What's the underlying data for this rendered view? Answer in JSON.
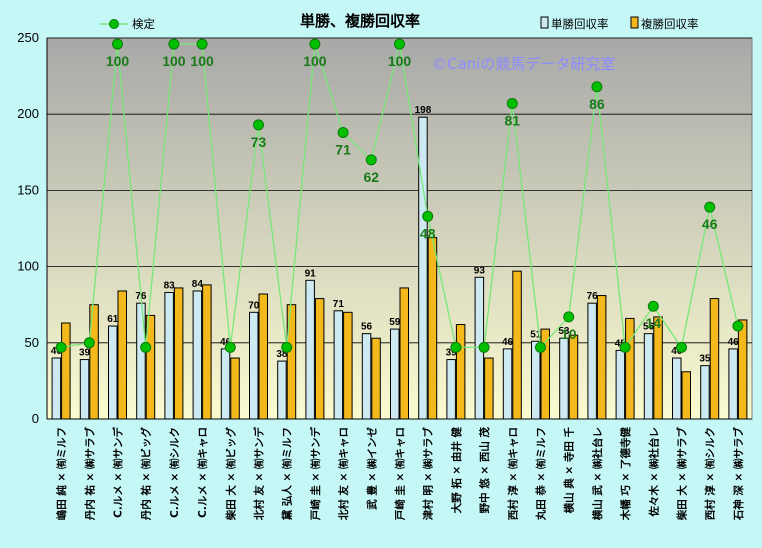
{
  "chart_data": {
    "type": "bar",
    "title": "単勝、複勝回収率",
    "watermark": "©Caniの競馬データ研究室",
    "ylim": [
      0,
      250
    ],
    "yticks": [
      0,
      50,
      100,
      150,
      200,
      250
    ],
    "grid": true,
    "legend_position": "top",
    "categories": [
      "嶋田 純 × ㈲ミルフ",
      "丹内 祐 × ㈱サラブ",
      "C.ルメ × ㈲サンデ",
      "丹内 祐 × ㈲ビッグ",
      "C.ルメ × ㈲シルク",
      "C.ルメ × ㈲キャロ",
      "柴田 大 × ㈲ビッグ",
      "北村 友 × ㈲サンデ",
      "黛 弘人 × ㈲ミルフ",
      "戸崎 圭 × ㈲サンデ",
      "北村 友 × ㈲キャロ",
      "武 豊 × ㈱インゼ",
      "戸崎 圭 × ㈲キャロ",
      "津村 明 × ㈱サラブ",
      "大野 拓 × 由井 健",
      "野中 悠 × 西山 茂",
      "西村 淳 × ㈲キャロ",
      "丸田 恭 × ㈲ミルフ",
      "横山 典 × 寺田 千",
      "横山 武 × ㈱社台レ",
      "木幡 巧 × 了德寺健",
      "佐々木 × ㈱社台レ",
      "柴田 大 × ㈱サラブ",
      "西村 淳 × ㈲シルク",
      "石神 深 × ㈱サラブ"
    ],
    "series": [
      {
        "name": "単勝回収率",
        "color": "#cdeaf3",
        "values": [
          40,
          39,
          61,
          76,
          83,
          84,
          46,
          70,
          38,
          91,
          71,
          56,
          59,
          198,
          39,
          93,
          46,
          51,
          53,
          76,
          45,
          56,
          40,
          35,
          46
        ],
        "labels": [
          "40",
          "39",
          "61",
          "76",
          "83",
          "84",
          "46",
          "70",
          "38",
          "91",
          "71",
          "56",
          "59",
          "198",
          "39",
          "93",
          "46",
          "51",
          "53",
          "76",
          "45",
          "56",
          "40",
          "35",
          "46"
        ]
      },
      {
        "name": "複勝回収率",
        "color": "#f2b81c",
        "values": [
          63,
          75,
          84,
          68,
          86,
          88,
          40,
          82,
          75,
          79,
          70,
          53,
          86,
          119,
          62,
          40,
          97,
          59,
          55,
          81,
          66,
          67,
          31,
          79,
          65
        ]
      }
    ],
    "line_series": {
      "name": "検定",
      "color": "#00c000",
      "values": [
        47,
        50,
        246,
        47,
        246,
        246,
        47,
        193,
        47,
        246,
        188,
        170,
        246,
        133,
        47,
        47,
        207,
        47,
        67,
        218,
        47,
        74,
        47,
        139,
        61
      ],
      "labels": [
        "",
        "",
        "100",
        "",
        "100",
        "100",
        "",
        "73",
        "",
        "100",
        "71",
        "62",
        "100",
        "48",
        "",
        "",
        "81",
        "",
        "10",
        "86",
        "",
        "14",
        "",
        "46",
        ""
      ]
    }
  }
}
